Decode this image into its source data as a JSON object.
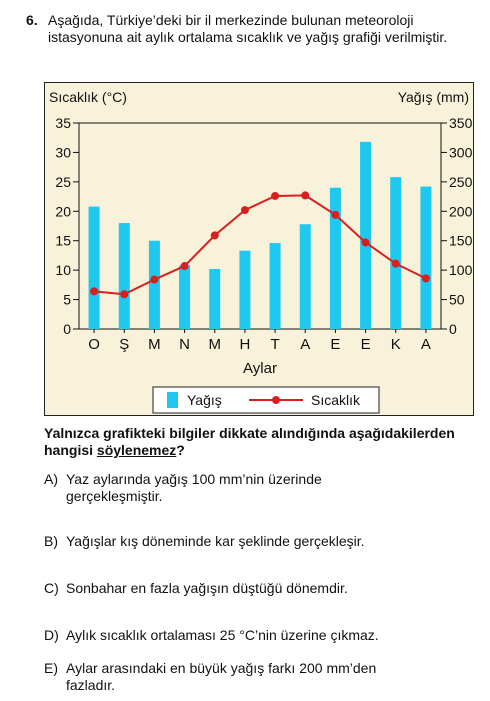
{
  "question_number": "6.",
  "intro_text": "Aşağıda, Türkiye’deki bir il merkezinde bulunan meteoroloji istasyonuna ait aylık ortalama sıcaklık ve yağış grafiği verilmiştir.",
  "chart_data": {
    "type": "bar+line",
    "left_axis_label": "Sıcaklık (°C)",
    "right_axis_label": "Yağış (mm)",
    "xlabel": "Aylar",
    "categories": [
      "O",
      "Ş",
      "M",
      "N",
      "M",
      "H",
      "T",
      "A",
      "E",
      "E",
      "K",
      "A"
    ],
    "left_ylim": [
      0,
      35
    ],
    "left_ticks": [
      "0",
      "5",
      "10",
      "15",
      "20",
      "25",
      "30",
      "35"
    ],
    "right_ylim": [
      0,
      350
    ],
    "right_ticks": [
      "0",
      "50",
      "100",
      "150",
      "200",
      "250",
      "300",
      "350"
    ],
    "series": [
      {
        "name": "Yağış",
        "kind": "bar",
        "axis": "right",
        "color": "#1ec8ee",
        "values": [
          208,
          180,
          150,
          108,
          102,
          133,
          146,
          178,
          240,
          318,
          258,
          242
        ]
      },
      {
        "name": "Sıcaklık",
        "kind": "line",
        "axis": "left",
        "color": "#d81f1f",
        "values": [
          6.4,
          5.9,
          8.4,
          10.7,
          15.9,
          20.2,
          22.6,
          22.7,
          19.4,
          14.7,
          11.1,
          8.6
        ]
      }
    ],
    "legend_position": "bottom"
  },
  "question": {
    "prefix": "Yalnızca grafikteki bilgiler dikkate alındığında aşağıdakilerden hangisi ",
    "emphasis": "söylenemez",
    "suffix": "?"
  },
  "options": [
    {
      "letter": "A)",
      "line1": "Yaz aylarında yağış 100 mm’nin üzerinde",
      "line2": "gerçekleşmiştir."
    },
    {
      "letter": "B)",
      "line1": "Yağışlar kış döneminde kar şeklinde gerçekleşir.",
      "line2": ""
    },
    {
      "letter": "C)",
      "line1": "Sonbahar en fazla yağışın düştüğü dönemdir.",
      "line2": ""
    },
    {
      "letter": "D)",
      "line1": "Aylık sıcaklık ortalaması 25 °C’nin üzerine çıkmaz.",
      "line2": ""
    },
    {
      "letter": "E)",
      "line1": "Aylar arasındaki en büyük yağış farkı 200 mm’den",
      "line2": "fazladır."
    }
  ]
}
